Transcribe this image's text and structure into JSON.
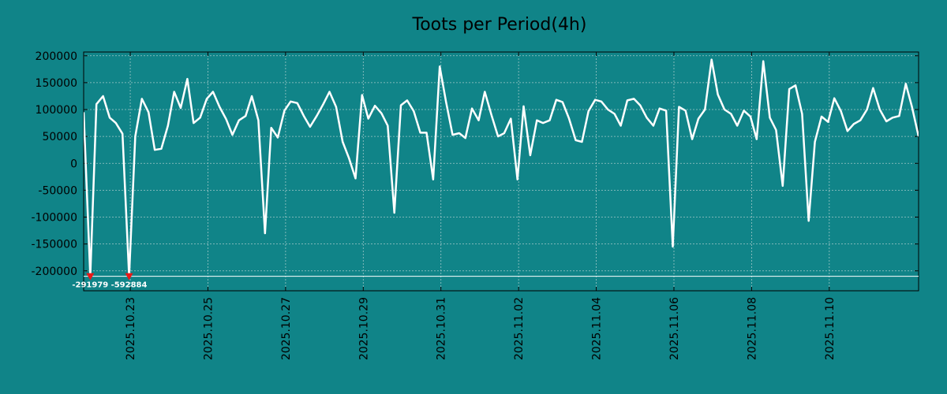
{
  "chart_data": {
    "type": "line",
    "title": "Toots per Period(4h)",
    "xlabel": "",
    "ylabel": "",
    "ylim": [
      -237000,
      207000
    ],
    "yticks": [
      200000,
      150000,
      100000,
      50000,
      0,
      -50000,
      -100000,
      -150000,
      -200000
    ],
    "ytick_labels": [
      "200000",
      "150000",
      "100000",
      "50000",
      "0",
      "-50000",
      "-100000",
      "-150000",
      "-200000"
    ],
    "xlim": [
      0,
      21.5
    ],
    "xticks": [
      1.2,
      3.2,
      5.2,
      7.2,
      9.2,
      11.2,
      13.2,
      15.2,
      17.2,
      19.2
    ],
    "xtick_labels": [
      "2025.10.23",
      "2025.10.25",
      "2025.10.27",
      "2025.10.29",
      "2025.10.31",
      "2025.11.02",
      "2025.11.04",
      "2025.11.06",
      "2025.11.08",
      "2025.11.10"
    ],
    "grid": true,
    "clip_line_value": -210000,
    "clip_markers": [
      {
        "x": 0.17,
        "value": -291979,
        "label": "-291979"
      },
      {
        "x": 1.17,
        "value": -592884,
        "label": "-592884"
      }
    ],
    "series": [
      {
        "name": "Toots",
        "color": "#ffffff",
        "x": [
          0.0,
          0.17,
          0.33,
          0.5,
          0.67,
          0.83,
          1.0,
          1.17,
          1.33,
          1.5,
          1.67,
          1.83,
          2.0,
          2.17,
          2.33,
          2.5,
          2.67,
          2.83,
          3.0,
          3.17,
          3.33,
          3.5,
          3.67,
          3.83,
          4.0,
          4.17,
          4.33,
          4.5,
          4.67,
          4.83,
          5.0,
          5.17,
          5.33,
          5.5,
          5.67,
          5.83,
          6.0,
          6.17,
          6.33,
          6.5,
          6.67,
          6.83,
          7.0,
          7.17,
          7.33,
          7.5,
          7.67,
          7.83,
          8.0,
          8.17,
          8.33,
          8.5,
          8.67,
          8.83,
          9.0,
          9.17,
          9.33,
          9.5,
          9.67,
          9.83,
          10.0,
          10.17,
          10.33,
          10.5,
          10.67,
          10.83,
          11.0,
          11.17,
          11.33,
          11.5,
          11.67,
          11.83,
          12.0,
          12.17,
          12.33,
          12.5,
          12.67,
          12.83,
          13.0,
          13.17,
          13.33,
          13.5,
          13.67,
          13.83,
          14.0,
          14.17,
          14.33,
          14.5,
          14.67,
          14.83,
          15.0,
          15.17,
          15.33,
          15.5,
          15.67,
          15.83,
          16.0,
          16.17,
          16.33,
          16.5,
          16.67,
          16.83,
          17.0,
          17.17,
          17.33,
          17.5,
          17.67,
          17.83,
          18.0,
          18.17,
          18.33,
          18.5,
          18.67,
          18.83,
          19.0,
          19.17,
          19.33,
          19.5,
          19.67,
          19.83,
          20.0,
          20.17,
          20.33,
          20.5,
          20.67,
          20.83,
          21.0,
          21.17,
          21.33,
          21.5
        ],
        "values": [
          95000,
          -291979,
          110000,
          125000,
          85000,
          75000,
          55000,
          -592884,
          50000,
          120000,
          95000,
          25000,
          27000,
          70000,
          133000,
          103000,
          157000,
          75000,
          85000,
          120000,
          133000,
          105000,
          82000,
          53000,
          80000,
          88000,
          125000,
          80000,
          -130000,
          66000,
          48000,
          98000,
          115000,
          112000,
          88000,
          68000,
          88000,
          110000,
          133000,
          105000,
          40000,
          10000,
          -28000,
          127000,
          83000,
          107000,
          93000,
          70000,
          -92000,
          108000,
          117000,
          97000,
          57000,
          57000,
          -30000,
          180000,
          115000,
          53000,
          56000,
          47000,
          102000,
          80000,
          133000,
          90000,
          50000,
          56000,
          83000,
          -30000,
          106000,
          15000,
          80000,
          75000,
          80000,
          118000,
          114000,
          83000,
          43000,
          40000,
          97000,
          118000,
          115000,
          100000,
          92000,
          70000,
          117000,
          120000,
          108000,
          85000,
          70000,
          102000,
          98000,
          -155000,
          105000,
          98000,
          45000,
          83000,
          100000,
          193000,
          128000,
          100000,
          92000,
          70000,
          98000,
          87000,
          45000,
          190000,
          85000,
          62000,
          -42000,
          138000,
          145000,
          92000,
          -107000,
          40000,
          87000,
          77000,
          121000,
          97000,
          60000,
          73000,
          80000,
          100000,
          140000,
          100000,
          78000,
          85000,
          88000,
          148000,
          105000,
          50000
        ]
      }
    ]
  }
}
